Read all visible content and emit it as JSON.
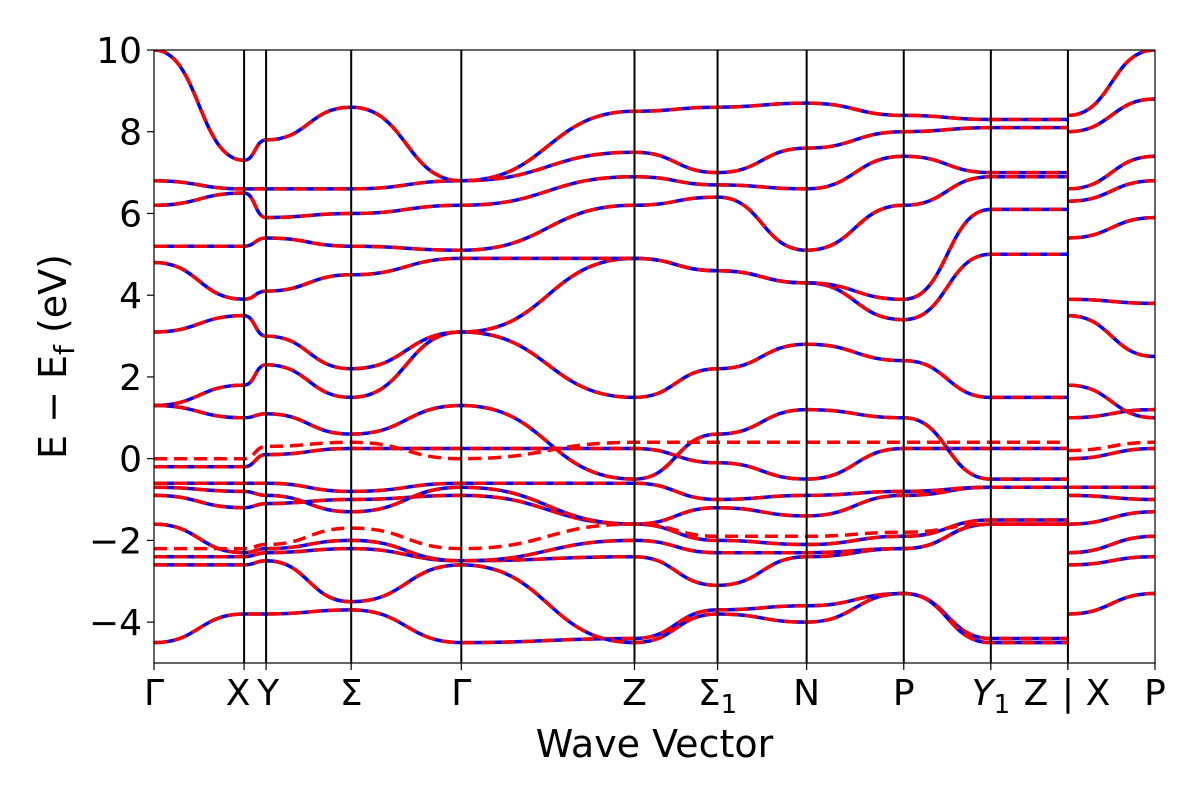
{
  "chart_data": {
    "type": "line",
    "xlabel": "Wave Vector",
    "ylabel": "E − E_f (eV)",
    "ylabel_parts": {
      "main": "E − E",
      "sub": "f",
      "tail": " (eV)"
    },
    "ylim": [
      -5,
      10
    ],
    "yticks": [
      {
        "value": -4,
        "label": "−4"
      },
      {
        "value": -2,
        "label": "−2"
      },
      {
        "value": 0,
        "label": "0"
      },
      {
        "value": 2,
        "label": "2"
      },
      {
        "value": 4,
        "label": "4"
      },
      {
        "value": 6,
        "label": "6"
      },
      {
        "value": 8,
        "label": "8"
      },
      {
        "value": 10,
        "label": "10"
      }
    ],
    "kpoints": [
      {
        "label": "Γ"
      },
      {
        "label": "X"
      },
      {
        "label": "Y"
      },
      {
        "label": "Σ"
      },
      {
        "label": "Γ"
      },
      {
        "label": "Z"
      },
      {
        "label": "Σ",
        "sub": "1"
      },
      {
        "label": "N"
      },
      {
        "label": "P"
      },
      {
        "label": "Y",
        "sub": "1",
        "italic": true
      },
      {
        "label": "Z"
      },
      {
        "label": "|"
      },
      {
        "label": "X"
      },
      {
        "label": "P"
      }
    ],
    "kpoint_x": [
      0,
      0.09,
      0.112,
      0.197,
      0.307,
      0.48,
      0.563,
      0.652,
      0.749,
      0.836,
      0.913,
      0.913,
      0.913,
      1.0
    ],
    "x_range": [
      0,
      1
    ],
    "grid": false,
    "legend": "none",
    "series_style": [
      {
        "color": "#0000ff",
        "dash": "solid"
      },
      {
        "color": "#ff0000",
        "dash": "dashed"
      }
    ],
    "bands": [
      {
        "x": [
          0,
          0.09,
          0.112,
          0.197,
          0.307,
          0.48,
          0.563,
          0.652,
          0.749,
          0.836,
          0.913
        ],
        "y": [
          -4.5,
          -3.8,
          -3.8,
          -3.7,
          -4.5,
          -4.4,
          -3.7,
          -3.6,
          -3.3,
          -4.4,
          -4.4
        ]
      },
      {
        "x": [
          0,
          0.09,
          0.112,
          0.197,
          0.307,
          0.48,
          0.563,
          0.652,
          0.749,
          0.836,
          0.913
        ],
        "y": [
          -2.6,
          -2.6,
          -2.5,
          -3.5,
          -2.6,
          -4.5,
          -3.8,
          -4.0,
          -3.3,
          -4.5,
          -4.5
        ]
      },
      {
        "x": [
          0,
          0.09,
          0.112,
          0.197,
          0.307,
          0.48,
          0.563,
          0.652,
          0.749,
          0.836,
          0.913
        ],
        "y": [
          -2.4,
          -2.4,
          -2.3,
          -2.2,
          -2.5,
          -2.4,
          -3.1,
          -2.4,
          -2.2,
          -1.6,
          -1.6
        ]
      },
      {
        "x": [
          0,
          0.09,
          0.112,
          0.197,
          0.307,
          0.48,
          0.563,
          0.652,
          0.749,
          0.836,
          0.913
        ],
        "y": [
          -1.6,
          -2.3,
          -2.2,
          -2.0,
          -2.5,
          -2.0,
          -2.3,
          -2.3,
          -2.2,
          -1.6,
          -1.6
        ]
      },
      {
        "x": [
          0,
          0.09,
          0.112,
          0.197,
          0.307,
          0.48,
          0.563,
          0.652,
          0.749,
          0.836,
          0.913
        ],
        "y": [
          -0.9,
          -1.2,
          -1.1,
          -1.0,
          -0.9,
          -1.6,
          -2.0,
          -2.1,
          -1.9,
          -1.5,
          -1.5
        ]
      },
      {
        "x": [
          0,
          0.09,
          0.112,
          0.197,
          0.307,
          0.48,
          0.563,
          0.652,
          0.749,
          0.836,
          0.913
        ],
        "y": [
          -0.7,
          -0.8,
          -0.9,
          -1.3,
          -0.7,
          -1.6,
          -1.2,
          -1.4,
          -0.9,
          -0.7,
          -0.7
        ]
      },
      {
        "x": [
          0,
          0.09,
          0.112,
          0.197,
          0.307,
          0.48,
          0.563,
          0.652,
          0.749,
          0.836,
          0.913
        ],
        "y": [
          -0.6,
          -0.6,
          -0.6,
          -0.8,
          -0.6,
          -0.6,
          -1.0,
          -0.9,
          -0.8,
          -0.7,
          -0.7
        ]
      },
      {
        "x": [
          0,
          0.09,
          0.112,
          0.197,
          0.307,
          0.48,
          0.563,
          0.652,
          0.749,
          0.836,
          0.913
        ],
        "y": [
          -0.2,
          -0.2,
          0.1,
          0.25,
          0.25,
          0.25,
          -0.1,
          -0.5,
          0.25,
          0.25,
          0.25
        ]
      },
      {
        "x": [
          0,
          0.09,
          0.112,
          0.197,
          0.307,
          0.48,
          0.563,
          0.652,
          0.749,
          0.836,
          0.913
        ],
        "y": [
          1.3,
          1.0,
          1.1,
          0.6,
          1.3,
          -0.5,
          0.6,
          1.2,
          1.0,
          -0.5,
          -0.5
        ]
      },
      {
        "x": [
          0,
          0.09,
          0.112,
          0.197,
          0.307,
          0.48,
          0.563,
          0.652,
          0.749,
          0.836,
          0.913
        ],
        "y": [
          1.3,
          1.8,
          2.3,
          1.5,
          3.1,
          1.5,
          2.2,
          2.8,
          2.4,
          1.5,
          1.5
        ]
      },
      {
        "x": [
          0,
          0.09,
          0.112,
          0.197,
          0.307,
          0.48,
          0.563,
          0.652,
          0.749,
          0.836,
          0.913
        ],
        "y": [
          3.1,
          3.5,
          3.0,
          2.2,
          3.1,
          4.9,
          4.6,
          4.3,
          3.4,
          5.0,
          5.0
        ]
      },
      {
        "x": [
          0,
          0.09,
          0.112,
          0.197,
          0.307,
          0.48,
          0.563,
          0.652,
          0.749,
          0.836,
          0.913
        ],
        "y": [
          4.8,
          3.9,
          4.1,
          4.5,
          4.9,
          4.9,
          4.6,
          4.3,
          3.9,
          6.1,
          6.1
        ]
      },
      {
        "x": [
          0,
          0.09,
          0.112,
          0.197,
          0.307,
          0.48,
          0.563,
          0.652,
          0.749,
          0.836,
          0.913
        ],
        "y": [
          5.2,
          5.2,
          5.4,
          5.2,
          5.1,
          6.2,
          6.4,
          5.1,
          6.2,
          6.9,
          6.9
        ]
      },
      {
        "x": [
          0,
          0.09,
          0.112,
          0.197,
          0.307,
          0.48,
          0.563,
          0.652,
          0.749,
          0.836,
          0.913
        ],
        "y": [
          6.2,
          6.5,
          5.9,
          6.0,
          6.2,
          6.9,
          6.7,
          6.6,
          7.4,
          7.0,
          7.0
        ]
      },
      {
        "x": [
          0,
          0.09,
          0.112,
          0.197,
          0.307,
          0.48,
          0.563,
          0.652,
          0.749,
          0.836,
          0.913
        ],
        "y": [
          6.8,
          6.6,
          6.6,
          6.6,
          6.8,
          7.5,
          7.0,
          7.6,
          8.0,
          8.1,
          8.1
        ]
      },
      {
        "x": [
          0,
          0.09,
          0.112,
          0.197,
          0.307,
          0.48,
          0.563,
          0.652,
          0.749,
          0.836,
          0.913
        ],
        "y": [
          10.0,
          7.3,
          7.8,
          8.6,
          6.8,
          8.5,
          8.6,
          8.7,
          8.4,
          8.3,
          8.3
        ]
      },
      {
        "x": [
          0.913,
          1.0
        ],
        "y": [
          -3.8,
          -3.3
        ]
      },
      {
        "x": [
          0.913,
          1.0
        ],
        "y": [
          -2.6,
          -2.4
        ]
      },
      {
        "x": [
          0.913,
          1.0
        ],
        "y": [
          -2.3,
          -1.9
        ]
      },
      {
        "x": [
          0.913,
          1.0
        ],
        "y": [
          -1.6,
          -1.3
        ]
      },
      {
        "x": [
          0.913,
          1.0
        ],
        "y": [
          -0.9,
          -1.0
        ]
      },
      {
        "x": [
          0.913,
          1.0
        ],
        "y": [
          -0.7,
          -0.7
        ]
      },
      {
        "x": [
          0.913,
          1.0
        ],
        "y": [
          0.0,
          0.25
        ]
      },
      {
        "x": [
          0.913,
          1.0
        ],
        "y": [
          1.0,
          1.2
        ]
      },
      {
        "x": [
          0.913,
          1.0
        ],
        "y": [
          1.8,
          1.0
        ]
      },
      {
        "x": [
          0.913,
          1.0
        ],
        "y": [
          3.5,
          2.5
        ]
      },
      {
        "x": [
          0.913,
          1.0
        ],
        "y": [
          3.9,
          3.8
        ]
      },
      {
        "x": [
          0.913,
          1.0
        ],
        "y": [
          5.4,
          5.9
        ]
      },
      {
        "x": [
          0.913,
          1.0
        ],
        "y": [
          6.3,
          6.8
        ]
      },
      {
        "x": [
          0.913,
          1.0
        ],
        "y": [
          6.6,
          7.4
        ]
      },
      {
        "x": [
          0.913,
          1.0
        ],
        "y": [
          8.0,
          8.8
        ]
      },
      {
        "x": [
          0.913,
          1.0
        ],
        "y": [
          8.4,
          10.0
        ]
      }
    ],
    "bands_dashed_offsets": [
      {
        "x": [
          0,
          0.09,
          0.112,
          0.197,
          0.307,
          0.48,
          0.563,
          0.652,
          0.749,
          0.836,
          0.913
        ],
        "y": [
          0.0,
          0.0,
          0.3,
          0.4,
          0.0,
          0.4,
          0.4,
          0.4,
          0.4,
          0.4,
          0.4
        ]
      },
      {
        "x": [
          0,
          0.09,
          0.112,
          0.197,
          0.307,
          0.48,
          0.563,
          0.652,
          0.749,
          0.836,
          0.913
        ],
        "y": [
          -2.2,
          -2.2,
          -2.1,
          -1.7,
          -2.2,
          -1.6,
          -1.9,
          -1.9,
          -1.8,
          -1.6,
          -1.6
        ]
      },
      {
        "x": [
          0.913,
          1.0
        ],
        "y": [
          0.2,
          0.4
        ]
      }
    ]
  }
}
